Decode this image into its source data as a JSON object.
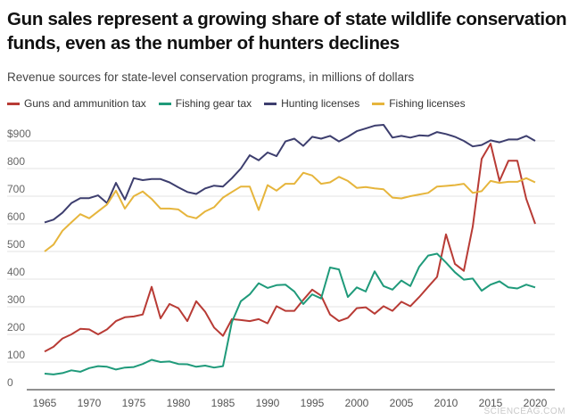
{
  "chart_data": {
    "type": "line",
    "title": "Gun sales represent a growing share of state wildlife conservation funds, even as the number of hunters declines",
    "subtitle": "Revenue sources for state-level conservation programs, in millions of dollars",
    "xlabel": "",
    "ylabel": "",
    "xlim": [
      1965,
      2020
    ],
    "ylim": [
      0,
      950
    ],
    "x_ticks": [
      "1965",
      "1970",
      "1975",
      "1980",
      "1985",
      "1990",
      "1995",
      "2000",
      "2005",
      "2010",
      "2015",
      "2020"
    ],
    "y_ticks": [
      "0",
      "100",
      "200",
      "300",
      "400",
      "500",
      "600",
      "700",
      "800",
      "$900"
    ],
    "grid": true,
    "legend": "top-left",
    "x_start": 1965,
    "series": [
      {
        "name": "Guns and ammunition tax",
        "color": "#b83b35",
        "values": [
          138,
          155,
          185,
          200,
          220,
          218,
          200,
          218,
          248,
          262,
          265,
          272,
          372,
          258,
          310,
          295,
          248,
          320,
          282,
          225,
          195,
          255,
          252,
          248,
          255,
          240,
          302,
          285,
          285,
          325,
          362,
          340,
          272,
          248,
          260,
          295,
          298,
          275,
          302,
          285,
          318,
          302,
          335,
          372,
          408,
          562,
          455,
          430,
          590,
          835,
          890,
          755,
          828,
          828,
          690,
          600
        ]
      },
      {
        "name": "Fishing gear tax",
        "color": "#1f9a7a",
        "values": [
          58,
          55,
          60,
          70,
          65,
          78,
          85,
          83,
          73,
          80,
          82,
          93,
          108,
          100,
          102,
          93,
          92,
          83,
          87,
          80,
          85,
          245,
          320,
          345,
          385,
          368,
          378,
          380,
          355,
          310,
          345,
          330,
          442,
          435,
          335,
          370,
          355,
          428,
          375,
          362,
          395,
          375,
          445,
          485,
          492,
          460,
          425,
          398,
          402,
          358,
          380,
          392,
          370,
          366,
          380,
          370
        ]
      },
      {
        "name": "Hunting licenses",
        "color": "#3d3e6e",
        "values": [
          605,
          615,
          640,
          675,
          693,
          693,
          703,
          675,
          748,
          688,
          765,
          758,
          762,
          762,
          750,
          732,
          715,
          708,
          728,
          738,
          735,
          765,
          800,
          848,
          830,
          858,
          845,
          898,
          908,
          882,
          915,
          908,
          918,
          898,
          915,
          935,
          945,
          955,
          958,
          912,
          918,
          912,
          920,
          918,
          932,
          925,
          915,
          900,
          880,
          885,
          902,
          895,
          905,
          905,
          918,
          900
        ]
      },
      {
        "name": "Fishing licenses",
        "color": "#e6b53c",
        "values": [
          500,
          525,
          575,
          605,
          635,
          620,
          645,
          670,
          720,
          655,
          700,
          717,
          690,
          655,
          655,
          652,
          628,
          620,
          645,
          660,
          695,
          715,
          735,
          735,
          650,
          740,
          720,
          745,
          745,
          785,
          775,
          745,
          750,
          770,
          755,
          730,
          733,
          728,
          725,
          695,
          692,
          700,
          706,
          712,
          735,
          737,
          740,
          745,
          712,
          718,
          755,
          748,
          752,
          752,
          765,
          750
        ]
      }
    ]
  },
  "watermark": "SCIENCEAG.COM"
}
